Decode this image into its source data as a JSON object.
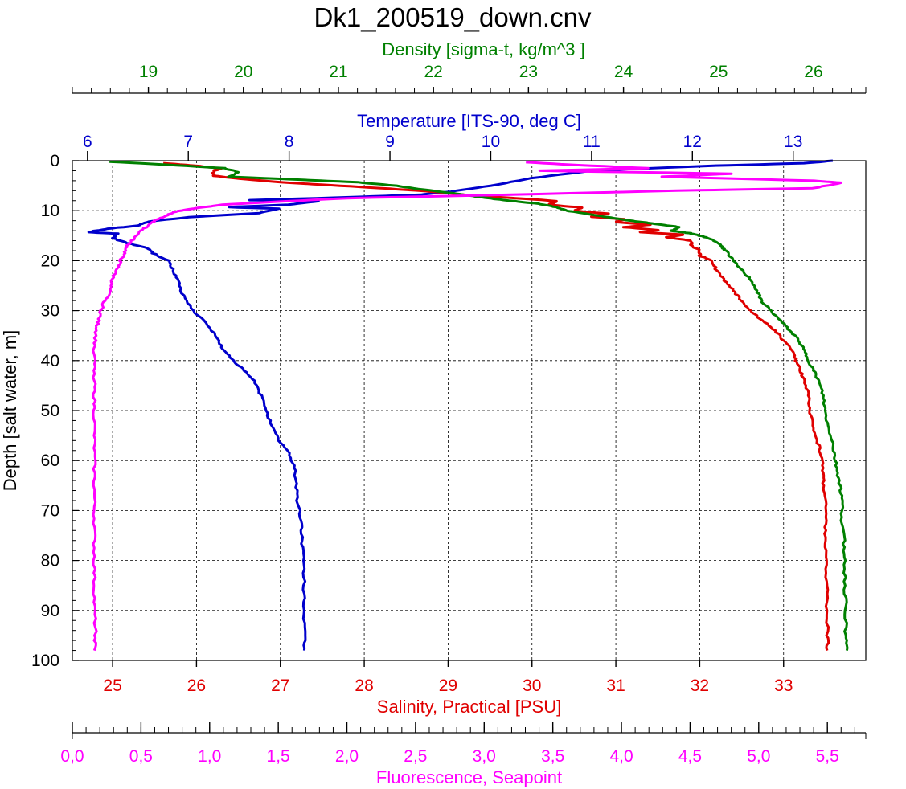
{
  "chart_data": {
    "type": "line",
    "title": "Dk1_200519_down.cnv",
    "grid": true,
    "y_axis": {
      "label": "Depth [salt water, m]",
      "range": [
        0,
        100
      ],
      "inverted": true,
      "ticks": [
        "0",
        "10",
        "20",
        "30",
        "40",
        "50",
        "60",
        "70",
        "80",
        "90",
        "100"
      ],
      "color": "#000000"
    },
    "x_axes": [
      {
        "id": "density",
        "label": "Density [sigma-t, kg/m^3 ]",
        "range": [
          18.2,
          26.55
        ],
        "ticks": [
          19,
          20,
          21,
          22,
          23,
          24,
          25,
          26
        ],
        "tick_labels": [
          "19",
          "20",
          "21",
          "22",
          "23",
          "24",
          "25",
          "26"
        ],
        "minor_step": 0.2,
        "color": "#008000",
        "position": "top-outer"
      },
      {
        "id": "temperature",
        "label": "Temperature [ITS-90, deg C]",
        "range": [
          5.85,
          13.72
        ],
        "ticks": [
          6,
          7,
          8,
          9,
          10,
          11,
          12,
          13
        ],
        "tick_labels": [
          "6",
          "7",
          "8",
          "9",
          "10",
          "11",
          "12",
          "13"
        ],
        "color": "#0000CC",
        "position": "top-inner"
      },
      {
        "id": "salinity",
        "label": "Salinity, Practical [PSU]",
        "range": [
          24.52,
          33.98
        ],
        "ticks": [
          25,
          26,
          27,
          28,
          29,
          30,
          31,
          32,
          33
        ],
        "tick_labels": [
          "25",
          "26",
          "27",
          "28",
          "29",
          "30",
          "31",
          "32",
          "33"
        ],
        "color": "#E00000",
        "position": "bottom-inner"
      },
      {
        "id": "fluorescence",
        "label": "Fluorescence, Seapoint",
        "range": [
          0.0,
          5.78
        ],
        "ticks": [
          0.0,
          0.5,
          1.0,
          1.5,
          2.0,
          2.5,
          3.0,
          3.5,
          4.0,
          4.5,
          5.0,
          5.5
        ],
        "tick_labels": [
          "0,0",
          "0,5",
          "1,0",
          "1,5",
          "2,0",
          "2,5",
          "3,0",
          "3,5",
          "4,0",
          "4,5",
          "5,0",
          "5,5"
        ],
        "minor_step": 0.1,
        "color": "#FF00FF",
        "position": "bottom-outer"
      }
    ],
    "series": [
      {
        "axis": "temperature",
        "color": "#0000CC",
        "points": [
          [
            13.4,
            0
          ],
          [
            13.1,
            0.5
          ],
          [
            12.2,
            1
          ],
          [
            11.0,
            2
          ],
          [
            10.4,
            3.5
          ],
          [
            10.0,
            5
          ],
          [
            9.6,
            6.2
          ],
          [
            9.3,
            6.8
          ],
          [
            8.6,
            7.3
          ],
          [
            7.6,
            7.9
          ],
          [
            8.3,
            8.1
          ],
          [
            8.0,
            8.8
          ],
          [
            7.4,
            9.3
          ],
          [
            7.9,
            9.6
          ],
          [
            7.7,
            10.5
          ],
          [
            7.0,
            11.3
          ],
          [
            6.6,
            12.2
          ],
          [
            6.5,
            13
          ],
          [
            6.2,
            13.6
          ],
          [
            6.0,
            14.3
          ],
          [
            6.3,
            14.6
          ],
          [
            6.25,
            15.5
          ],
          [
            6.4,
            16.5
          ],
          [
            6.6,
            17.5
          ],
          [
            6.65,
            18.5
          ],
          [
            6.8,
            20
          ],
          [
            6.85,
            22
          ],
          [
            6.9,
            24
          ],
          [
            6.95,
            27
          ],
          [
            7.05,
            30
          ],
          [
            7.2,
            33
          ],
          [
            7.3,
            36
          ],
          [
            7.35,
            38
          ],
          [
            7.45,
            40
          ],
          [
            7.55,
            42
          ],
          [
            7.65,
            44
          ],
          [
            7.72,
            47
          ],
          [
            7.78,
            50
          ],
          [
            7.82,
            53
          ],
          [
            7.9,
            56
          ],
          [
            7.98,
            58
          ],
          [
            8.05,
            61
          ],
          [
            8.07,
            64
          ],
          [
            8.08,
            68
          ],
          [
            8.12,
            72
          ],
          [
            8.13,
            76
          ],
          [
            8.14,
            80
          ],
          [
            8.15,
            85
          ],
          [
            8.15,
            90
          ],
          [
            8.15,
            95
          ],
          [
            8.15,
            98
          ]
        ]
      },
      {
        "axis": "salinity",
        "color": "#E00000",
        "points": [
          [
            25.6,
            0.5
          ],
          [
            26.0,
            1
          ],
          [
            26.3,
            1.6
          ],
          [
            26.2,
            2
          ],
          [
            26.2,
            3
          ],
          [
            26.5,
            3.6
          ],
          [
            27.0,
            4.3
          ],
          [
            27.6,
            4.9
          ],
          [
            28.3,
            5.6
          ],
          [
            28.9,
            6.3
          ],
          [
            29.3,
            7
          ],
          [
            29.9,
            7.6
          ],
          [
            30.3,
            8.1
          ],
          [
            30.2,
            8.8
          ],
          [
            30.6,
            9.4
          ],
          [
            30.5,
            10
          ],
          [
            30.9,
            10.6
          ],
          [
            30.7,
            11.2
          ],
          [
            31.1,
            11.7
          ],
          [
            31.0,
            12.3
          ],
          [
            31.4,
            12.8
          ],
          [
            31.1,
            13.3
          ],
          [
            31.5,
            13.9
          ],
          [
            31.3,
            14.3
          ],
          [
            31.8,
            14.8
          ],
          [
            31.6,
            15.3
          ],
          [
            31.9,
            16
          ],
          [
            31.9,
            17
          ],
          [
            32.0,
            18
          ],
          [
            32.0,
            19
          ],
          [
            32.15,
            20
          ],
          [
            32.2,
            22
          ],
          [
            32.3,
            24
          ],
          [
            32.4,
            26
          ],
          [
            32.5,
            28
          ],
          [
            32.6,
            30
          ],
          [
            32.75,
            32
          ],
          [
            32.9,
            34
          ],
          [
            33.0,
            36
          ],
          [
            33.1,
            38
          ],
          [
            33.15,
            40
          ],
          [
            33.2,
            42
          ],
          [
            33.25,
            44
          ],
          [
            33.3,
            47
          ],
          [
            33.3,
            50
          ],
          [
            33.35,
            53
          ],
          [
            33.4,
            56
          ],
          [
            33.45,
            59
          ],
          [
            33.47,
            62
          ],
          [
            33.48,
            65
          ],
          [
            33.5,
            68
          ],
          [
            33.5,
            72
          ],
          [
            33.5,
            76
          ],
          [
            33.5,
            80
          ],
          [
            33.52,
            85
          ],
          [
            33.52,
            90
          ],
          [
            33.52,
            95
          ],
          [
            33.52,
            98
          ]
        ]
      },
      {
        "axis": "density",
        "color": "#008000",
        "points": [
          [
            18.6,
            0.2
          ],
          [
            19.2,
            0.8
          ],
          [
            19.8,
            1.5
          ],
          [
            19.95,
            2.3
          ],
          [
            19.85,
            3.2
          ],
          [
            20.6,
            3.8
          ],
          [
            21.2,
            4.3
          ],
          [
            21.6,
            5
          ],
          [
            21.9,
            5.8
          ],
          [
            22.2,
            6.5
          ],
          [
            22.5,
            7.3
          ],
          [
            22.8,
            8
          ],
          [
            23.1,
            8.6
          ],
          [
            23.3,
            9.3
          ],
          [
            23.4,
            10
          ],
          [
            23.6,
            10.6
          ],
          [
            23.8,
            11.2
          ],
          [
            24.0,
            11.8
          ],
          [
            24.2,
            12.3
          ],
          [
            24.4,
            12.8
          ],
          [
            24.6,
            13.3
          ],
          [
            24.5,
            14
          ],
          [
            24.7,
            14.5
          ],
          [
            24.8,
            15
          ],
          [
            24.9,
            15.5
          ],
          [
            25.0,
            16.5
          ],
          [
            25.05,
            17.5
          ],
          [
            25.1,
            18.5
          ],
          [
            25.15,
            20
          ],
          [
            25.25,
            22
          ],
          [
            25.35,
            24
          ],
          [
            25.4,
            26
          ],
          [
            25.45,
            28
          ],
          [
            25.55,
            30
          ],
          [
            25.65,
            32
          ],
          [
            25.75,
            34
          ],
          [
            25.85,
            36
          ],
          [
            25.9,
            38
          ],
          [
            25.95,
            40
          ],
          [
            26.0,
            42
          ],
          [
            26.05,
            44
          ],
          [
            26.1,
            47
          ],
          [
            26.12,
            50
          ],
          [
            26.15,
            53
          ],
          [
            26.2,
            56
          ],
          [
            26.22,
            59
          ],
          [
            26.25,
            62
          ],
          [
            26.28,
            65
          ],
          [
            26.3,
            68
          ],
          [
            26.3,
            72
          ],
          [
            26.32,
            76
          ],
          [
            26.33,
            80
          ],
          [
            26.33,
            85
          ],
          [
            26.34,
            90
          ],
          [
            26.34,
            95
          ],
          [
            26.35,
            98
          ]
        ]
      },
      {
        "axis": "fluorescence",
        "color": "#FF00FF",
        "points": [
          [
            3.3,
            0.3
          ],
          [
            3.7,
            0.9
          ],
          [
            4.2,
            1.5
          ],
          [
            3.4,
            2
          ],
          [
            4.8,
            2.6
          ],
          [
            4.3,
            3.2
          ],
          [
            5.4,
            4
          ],
          [
            5.6,
            4.4
          ],
          [
            5.4,
            5.5
          ],
          [
            4.4,
            6
          ],
          [
            3.2,
            6.8
          ],
          [
            2.0,
            7.5
          ],
          [
            1.5,
            8.2
          ],
          [
            1.1,
            8.8
          ],
          [
            0.9,
            9.5
          ],
          [
            0.75,
            10.2
          ],
          [
            0.68,
            11
          ],
          [
            0.6,
            12
          ],
          [
            0.55,
            13
          ],
          [
            0.5,
            14
          ],
          [
            0.45,
            15.5
          ],
          [
            0.4,
            17
          ],
          [
            0.38,
            18.5
          ],
          [
            0.35,
            20
          ],
          [
            0.33,
            21.5
          ],
          [
            0.3,
            23
          ],
          [
            0.28,
            25
          ],
          [
            0.26,
            27
          ],
          [
            0.22,
            29
          ],
          [
            0.2,
            31
          ],
          [
            0.18,
            33
          ],
          [
            0.17,
            35
          ],
          [
            0.16,
            38
          ],
          [
            0.16,
            42
          ],
          [
            0.16,
            46
          ],
          [
            0.16,
            50
          ],
          [
            0.16,
            55
          ],
          [
            0.16,
            60
          ],
          [
            0.16,
            65
          ],
          [
            0.16,
            70
          ],
          [
            0.16,
            75
          ],
          [
            0.16,
            80
          ],
          [
            0.16,
            85
          ],
          [
            0.16,
            90
          ],
          [
            0.17,
            95
          ],
          [
            0.16,
            98
          ]
        ]
      }
    ]
  }
}
